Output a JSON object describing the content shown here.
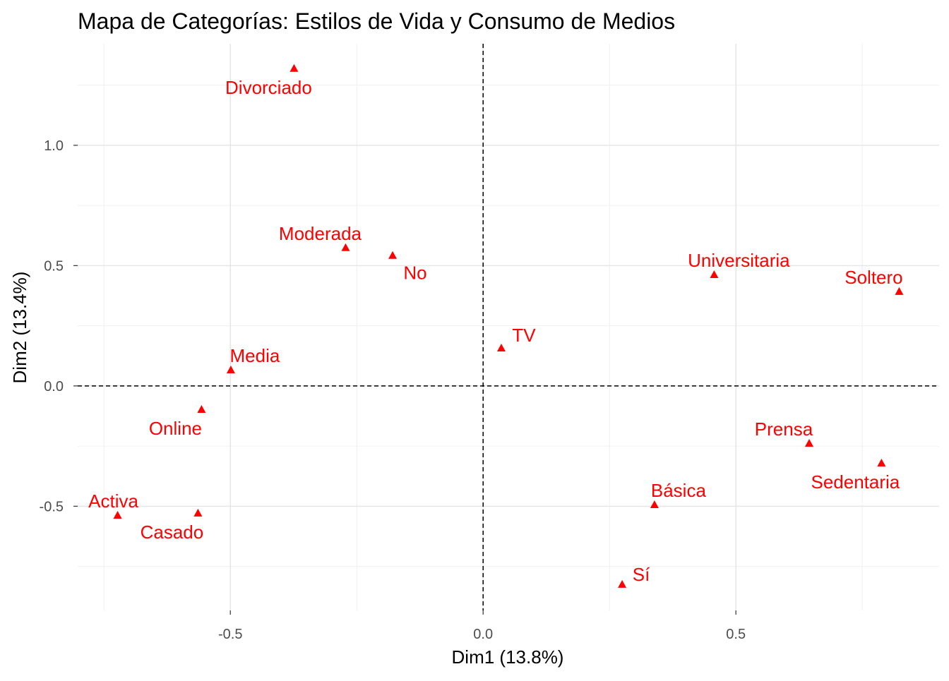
{
  "chart_data": {
    "type": "scatter",
    "title": "Mapa de Categorías: Estilos de Vida y Consumo de Medios",
    "xlabel": "Dim1 (13.8%)",
    "ylabel": "Dim2 (13.4%)",
    "xlim": [
      -0.802,
      0.902
    ],
    "ylim": [
      -0.933,
      1.422
    ],
    "xticks": [
      -0.5,
      0.0,
      0.5
    ],
    "xtick_labels": [
      "-0.5",
      "0.0",
      "0.5"
    ],
    "yticks": [
      -0.5,
      0.0,
      0.5,
      1.0
    ],
    "ytick_labels": [
      "-0.5",
      "0.0",
      "0.5",
      "1.0"
    ],
    "grid": true,
    "reference_lines": {
      "x": 0,
      "y": 0,
      "style": "dashed"
    },
    "marker": "triangle",
    "color": "#ff0000",
    "points": [
      {
        "label": "Divorciado",
        "x": -0.374,
        "y": 1.32
      },
      {
        "label": "Moderada",
        "x": -0.272,
        "y": 0.575
      },
      {
        "label": "No",
        "x": -0.179,
        "y": 0.543
      },
      {
        "label": "Universitaria",
        "x": 0.457,
        "y": 0.463
      },
      {
        "label": "Soltero",
        "x": 0.823,
        "y": 0.393
      },
      {
        "label": "TV",
        "x": 0.036,
        "y": 0.158
      },
      {
        "label": "Media",
        "x": -0.499,
        "y": 0.067
      },
      {
        "label": "Online",
        "x": -0.557,
        "y": -0.097
      },
      {
        "label": "Prensa",
        "x": 0.645,
        "y": -0.238
      },
      {
        "label": "Sedentaria",
        "x": 0.788,
        "y": -0.32
      },
      {
        "label": "Básica",
        "x": 0.339,
        "y": -0.493
      },
      {
        "label": "Activa",
        "x": -0.723,
        "y": -0.537
      },
      {
        "label": "Casado",
        "x": -0.564,
        "y": -0.528
      },
      {
        "label": "Sí",
        "x": 0.275,
        "y": -0.824
      }
    ]
  }
}
